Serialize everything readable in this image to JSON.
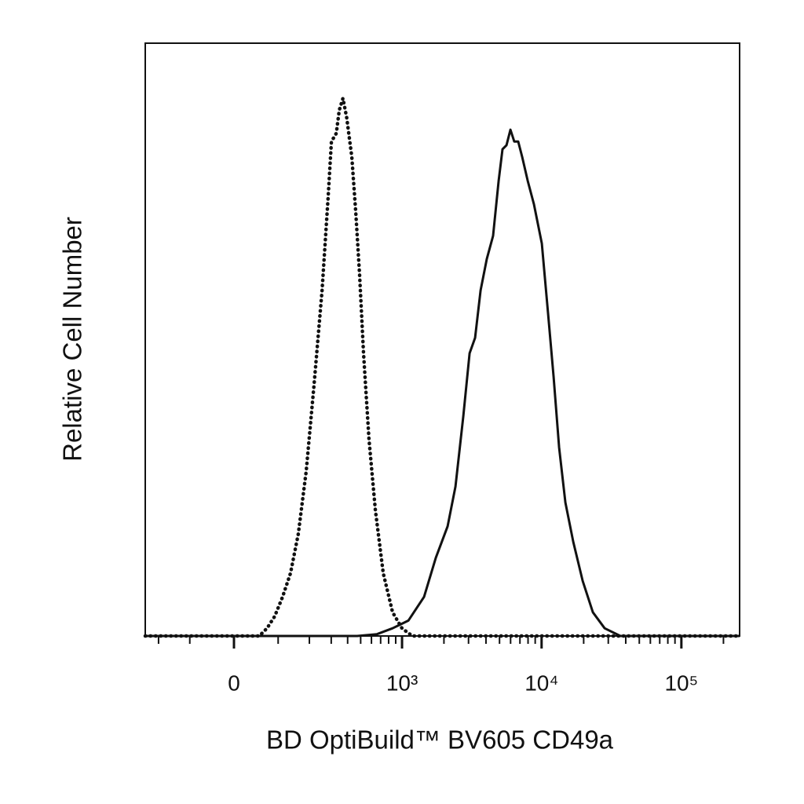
{
  "chart_data": {
    "type": "line",
    "xscale": "biexponential",
    "xlabel": "BD OptiBuild™  BV605 CD49a",
    "ylabel": "Relative Cell Number",
    "xlim": [
      -257,
      261000
    ],
    "ylim": [
      0,
      100
    ],
    "xticks": [
      0,
      {
        "value": 1000,
        "label": "10³"
      },
      {
        "value": 10000,
        "label": "10⁴"
      },
      {
        "value": 100000,
        "label": "10⁵"
      }
    ],
    "xminorticks": [
      -200,
      -100,
      100,
      200,
      300,
      400,
      500,
      600,
      700,
      800,
      900,
      2000,
      3000,
      4000,
      5000,
      6000,
      7000,
      8000,
      9000,
      20000,
      30000,
      40000,
      50000,
      60000,
      70000,
      80000,
      90000,
      200000
    ],
    "series": [
      {
        "color": "#111111",
        "style": "dotted",
        "x": [
          -257,
          54,
          72,
          91,
          112,
          135,
          160,
          188,
          219,
          254,
          284,
          301,
          328,
          346,
          369,
          394,
          430,
          460,
          491,
          525,
          576,
          641,
          731,
          854,
          999,
          1186,
          261000
        ],
        "values": [
          0,
          0,
          1.3,
          3.3,
          6.6,
          10.6,
          17.2,
          27.8,
          42.4,
          58.3,
          74.2,
          83.4,
          84.8,
          88.7,
          90.7,
          87.4,
          80.8,
          71.5,
          60.9,
          47.7,
          33.1,
          21.2,
          10.6,
          4.0,
          1.3,
          0,
          0
        ]
      },
      {
        "color": "#111111",
        "style": "solid",
        "x": [
          -257,
          472,
          658,
          854,
          1110,
          1440,
          1749,
          2126,
          2418,
          2752,
          3053,
          3345,
          3660,
          4057,
          4498,
          4927,
          5254,
          5607,
          5985,
          6376,
          6804,
          7270,
          7951,
          8820,
          10042,
          11138,
          12184,
          13343,
          14792,
          16834,
          19669,
          23260,
          28262,
          36603,
          261000
        ],
        "values": [
          0,
          0,
          0.3,
          1.3,
          2.6,
          6.6,
          13.2,
          18.5,
          25.2,
          37.1,
          47.7,
          50.3,
          58.3,
          63.6,
          67.5,
          76.8,
          82.1,
          82.8,
          85.4,
          83.4,
          83.4,
          80.8,
          76.8,
          72.8,
          66.2,
          54.3,
          43.7,
          31.8,
          22.5,
          15.9,
          9.3,
          4.0,
          1.3,
          0,
          0
        ]
      }
    ]
  }
}
